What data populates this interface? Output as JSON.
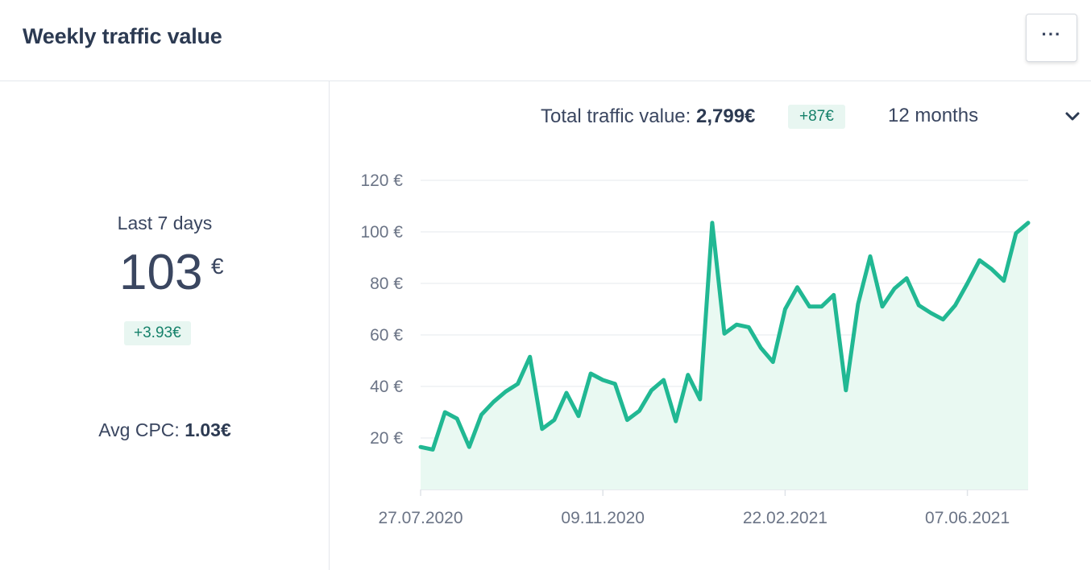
{
  "header": {
    "title": "Weekly traffic value",
    "menu_label": "···"
  },
  "stats": {
    "period_label": "Last 7 days",
    "value": "103",
    "unit": "€",
    "delta": "+3.93€",
    "avg_cpc_label": "Avg CPC:",
    "avg_cpc_value": "1.03€"
  },
  "summary": {
    "total_label": "Total traffic value:",
    "total_value": "2,799€",
    "total_delta": "+87€",
    "range": "12 months"
  },
  "colors": {
    "line": "#21b893",
    "area": "#e9f9f2",
    "badge_bg": "#e8f6f1",
    "badge_text": "#15816a"
  },
  "chart_data": {
    "type": "area",
    "y_ticks": [
      "20 €",
      "40 €",
      "60 €",
      "80 €",
      "100 €",
      "120 €"
    ],
    "x_ticks": [
      "27.07.2020",
      "09.11.2020",
      "22.02.2021",
      "07.06.2021"
    ],
    "ylim": [
      0,
      120
    ],
    "grid": true,
    "series": [
      {
        "values": [
          16.5,
          15.5,
          30,
          27.5,
          16.5,
          29,
          34,
          38,
          41,
          51.5,
          23.5,
          27,
          37.5,
          28.5,
          45,
          42.5,
          41,
          27,
          30.5,
          38.5,
          42.5,
          26.5,
          44.5,
          35,
          103.5,
          60.5,
          64,
          63,
          55,
          49.5,
          70,
          78.5,
          71,
          71,
          75.5,
          38.5,
          72,
          90.5,
          71,
          78,
          82,
          71.5,
          68.5,
          66,
          71.5,
          80,
          89,
          85.5,
          81,
          99.5,
          103.5
        ]
      }
    ]
  }
}
